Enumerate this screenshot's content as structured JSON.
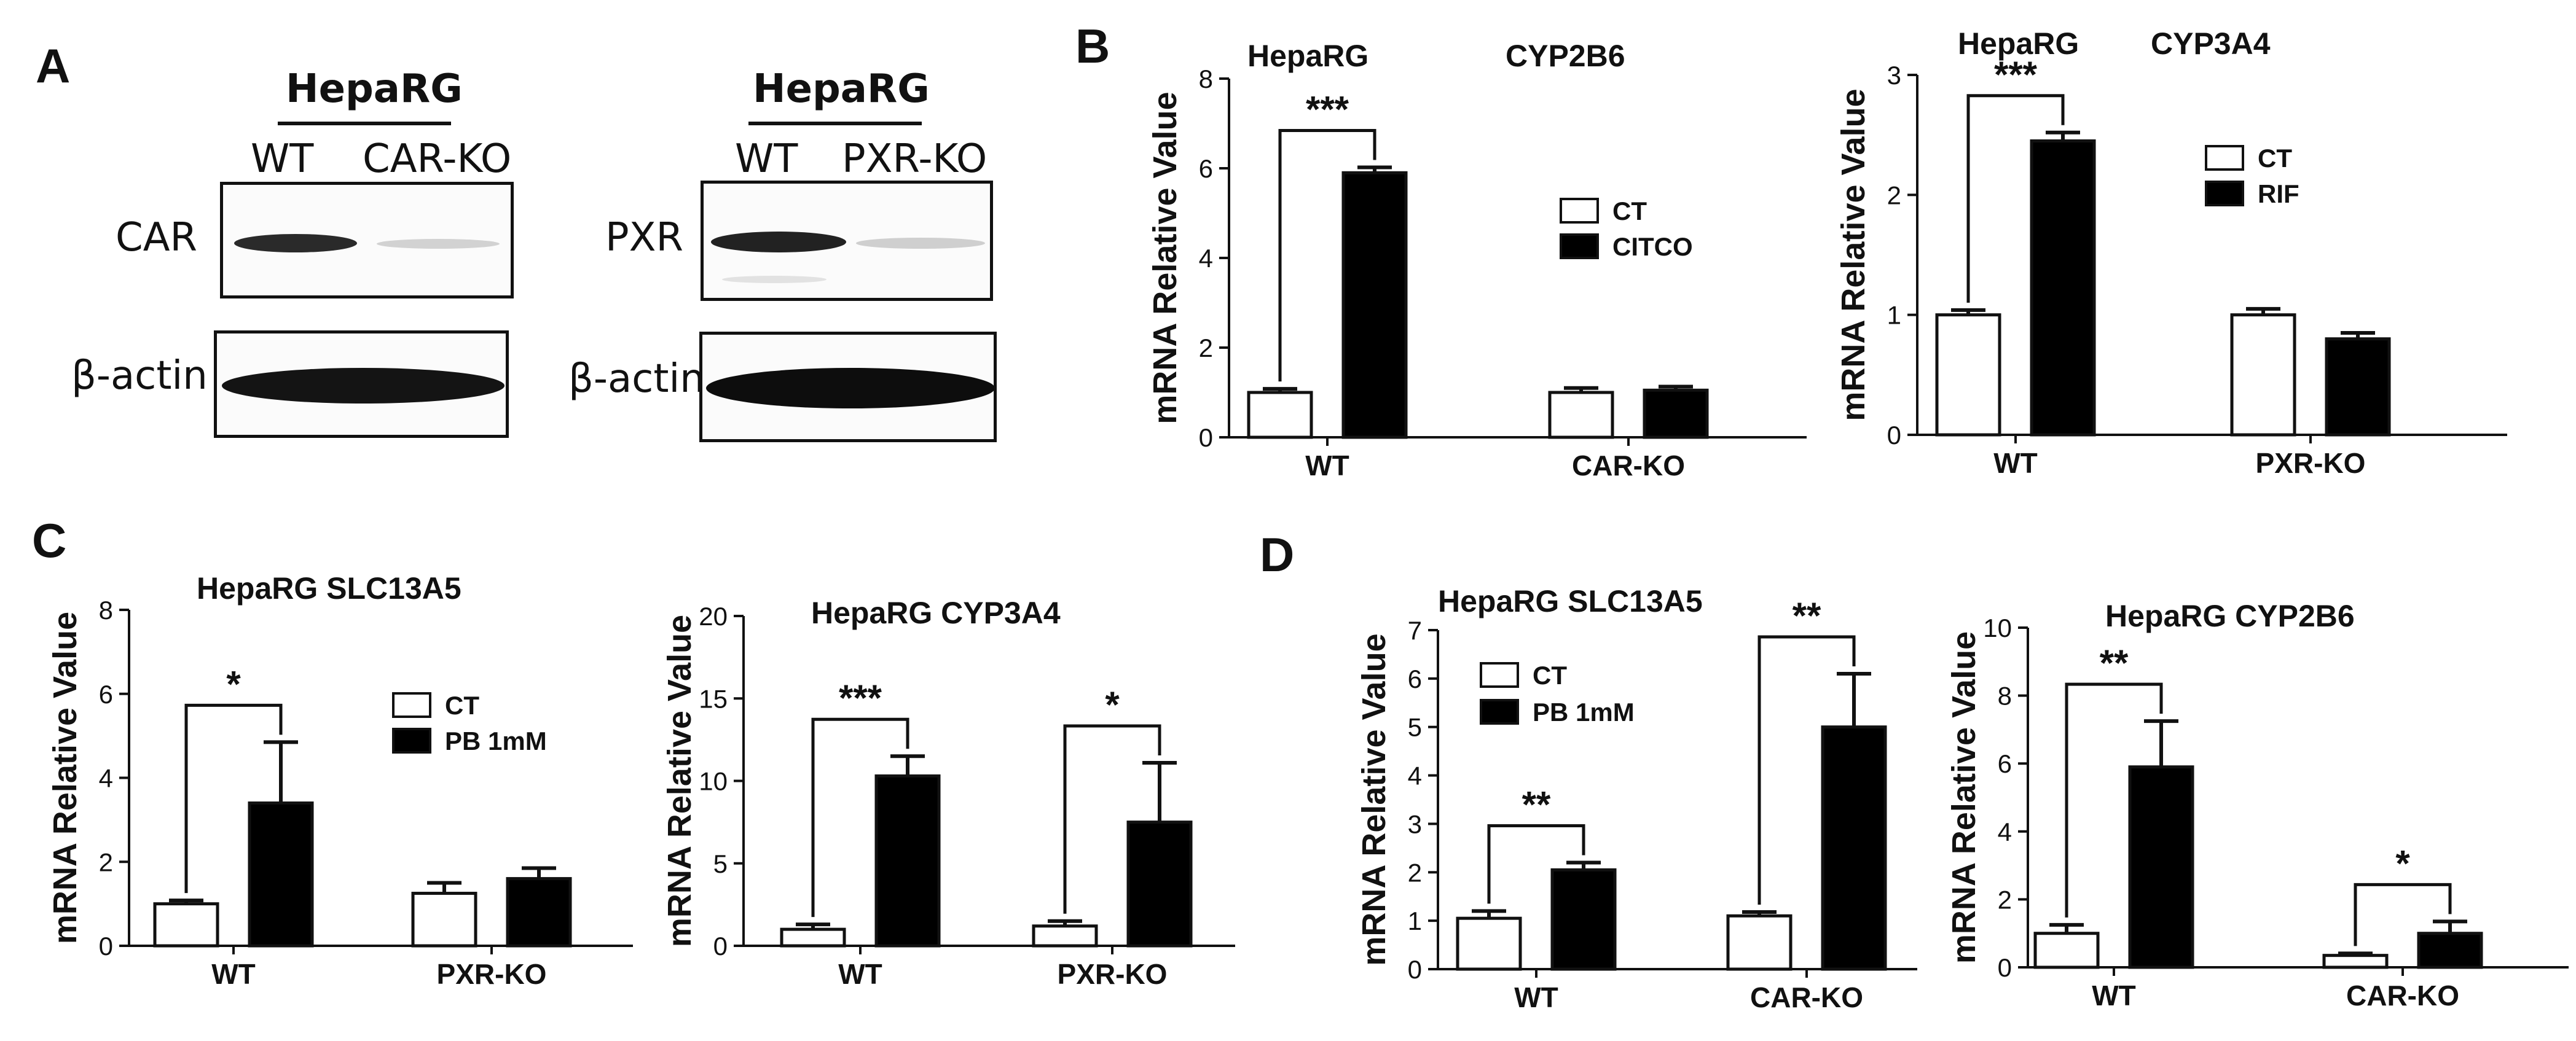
{
  "panels": {
    "A": "A",
    "B": "B",
    "C": "C",
    "D": "D"
  },
  "blots": [
    {
      "title": "HepaRG",
      "lanes": [
        "WT",
        "CAR-KO"
      ],
      "target": "CAR",
      "loading": "β-actin"
    },
    {
      "title": "HepaRG",
      "lanes": [
        "WT",
        "PXR-KO"
      ],
      "target": "PXR",
      "loading": "β-actin"
    }
  ],
  "chart_data": [
    {
      "type": "bar",
      "panel": "B",
      "title_parts": [
        "HepaRG",
        "CYP2B6"
      ],
      "ylabel": "mRNA Relative Value",
      "categories": [
        "WT",
        "CAR-KO"
      ],
      "ylim": [
        0,
        8
      ],
      "yticks": [
        0,
        2,
        4,
        6,
        8
      ],
      "series": [
        {
          "name": "CT",
          "values": [
            1.0,
            1.0
          ],
          "errors": [
            0.08,
            0.1
          ],
          "fill": "#ffffff"
        },
        {
          "name": "CITCO",
          "values": [
            5.9,
            1.05
          ],
          "errors": [
            0.12,
            0.08
          ],
          "fill": "#000000"
        }
      ],
      "significance": [
        {
          "group": 0,
          "label": "***"
        }
      ],
      "legend_position": "right-middle"
    },
    {
      "type": "bar",
      "panel": "B",
      "title_parts": [
        "HepaRG",
        "CYP3A4"
      ],
      "ylabel": "mRNA Relative Value",
      "categories": [
        "WT",
        "PXR-KO"
      ],
      "ylim": [
        0,
        3
      ],
      "yticks": [
        0,
        1,
        2,
        3
      ],
      "series": [
        {
          "name": "CT",
          "values": [
            1.0,
            1.0
          ],
          "errors": [
            0.04,
            0.05
          ],
          "fill": "#ffffff"
        },
        {
          "name": "RIF",
          "values": [
            2.45,
            0.8
          ],
          "errors": [
            0.07,
            0.05
          ],
          "fill": "#000000"
        }
      ],
      "significance": [
        {
          "group": 0,
          "label": "***"
        }
      ],
      "legend_position": "right-upper"
    },
    {
      "type": "bar",
      "panel": "C",
      "title_parts": [
        "HepaRG SLC13A5"
      ],
      "ylabel": "mRNA Relative Value",
      "categories": [
        "WT",
        "PXR-KO"
      ],
      "ylim": [
        0,
        8
      ],
      "yticks": [
        0,
        2,
        4,
        6,
        8
      ],
      "series": [
        {
          "name": "CT",
          "values": [
            1.0,
            1.25
          ],
          "errors": [
            0.08,
            0.25
          ],
          "fill": "#ffffff"
        },
        {
          "name": "PB 1mM",
          "values": [
            3.4,
            1.6
          ],
          "errors": [
            1.45,
            0.25
          ],
          "fill": "#000000"
        }
      ],
      "significance": [
        {
          "group": 0,
          "label": "*"
        }
      ],
      "legend_position": "right-middle"
    },
    {
      "type": "bar",
      "panel": "C",
      "title_parts": [
        "HepaRG CYP3A4"
      ],
      "ylabel": "mRNA Relative Value",
      "categories": [
        "WT",
        "PXR-KO"
      ],
      "ylim": [
        0,
        20
      ],
      "yticks": [
        0,
        5,
        10,
        15,
        20
      ],
      "series": [
        {
          "name": "CT",
          "values": [
            1.0,
            1.2
          ],
          "errors": [
            0.3,
            0.3
          ],
          "fill": "#ffffff"
        },
        {
          "name": "PB 1mM",
          "values": [
            10.3,
            7.5
          ],
          "errors": [
            1.2,
            3.6
          ],
          "fill": "#000000"
        }
      ],
      "significance": [
        {
          "group": 0,
          "label": "***"
        },
        {
          "group": 1,
          "label": "*"
        }
      ],
      "legend_position": "none"
    },
    {
      "type": "bar",
      "panel": "D",
      "title_parts": [
        "HepaRG SLC13A5"
      ],
      "ylabel": "mRNA Relative Value",
      "categories": [
        "WT",
        "CAR-KO"
      ],
      "ylim": [
        0,
        7
      ],
      "yticks": [
        0,
        1,
        2,
        3,
        4,
        5,
        6,
        7
      ],
      "series": [
        {
          "name": "CT",
          "values": [
            1.05,
            1.1
          ],
          "errors": [
            0.15,
            0.08
          ],
          "fill": "#ffffff"
        },
        {
          "name": "PB 1mM",
          "values": [
            2.05,
            5.0
          ],
          "errors": [
            0.15,
            1.1
          ],
          "fill": "#000000"
        }
      ],
      "significance": [
        {
          "group": 0,
          "label": "**"
        },
        {
          "group": 1,
          "label": "**"
        }
      ],
      "legend_position": "left-upper"
    },
    {
      "type": "bar",
      "panel": "D",
      "title_parts": [
        "HepaRG CYP2B6"
      ],
      "ylabel": "mRNA Relative Value",
      "categories": [
        "WT",
        "CAR-KO"
      ],
      "ylim": [
        0,
        10
      ],
      "yticks": [
        0,
        2,
        4,
        6,
        8,
        10
      ],
      "series": [
        {
          "name": "CT",
          "values": [
            1.0,
            0.35
          ],
          "errors": [
            0.25,
            0.06
          ],
          "fill": "#ffffff"
        },
        {
          "name": "PB 1mM",
          "values": [
            5.9,
            1.0
          ],
          "errors": [
            1.35,
            0.35
          ],
          "fill": "#000000"
        }
      ],
      "significance": [
        {
          "group": 0,
          "label": "**"
        },
        {
          "group": 1,
          "label": "*"
        }
      ],
      "legend_position": "none"
    }
  ]
}
